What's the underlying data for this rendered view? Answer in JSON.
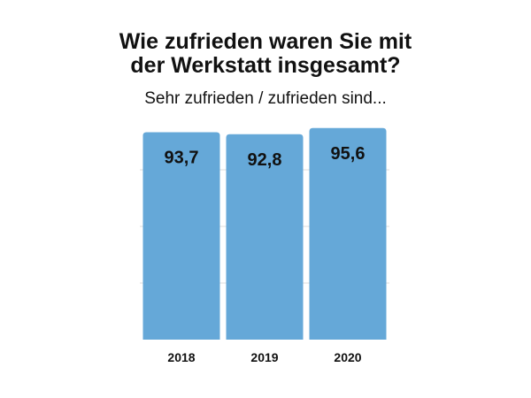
{
  "chart_data": {
    "type": "bar",
    "title_lines": [
      "Wie zufrieden waren Sie mit",
      "der Werkstatt insgesamt?"
    ],
    "subtitle": "Sehr zufrieden / zufrieden sind...",
    "categories": [
      "2018",
      "2019",
      "2020"
    ],
    "values": [
      93.7,
      92.8,
      95.6
    ],
    "value_labels": [
      "93,7",
      "92,8",
      "95,6"
    ],
    "xlabel": "",
    "ylabel": "",
    "ylim": [
      0,
      100
    ],
    "grid": true,
    "bar_color": "#65a8d8",
    "grid_color": "#dddddd"
  }
}
